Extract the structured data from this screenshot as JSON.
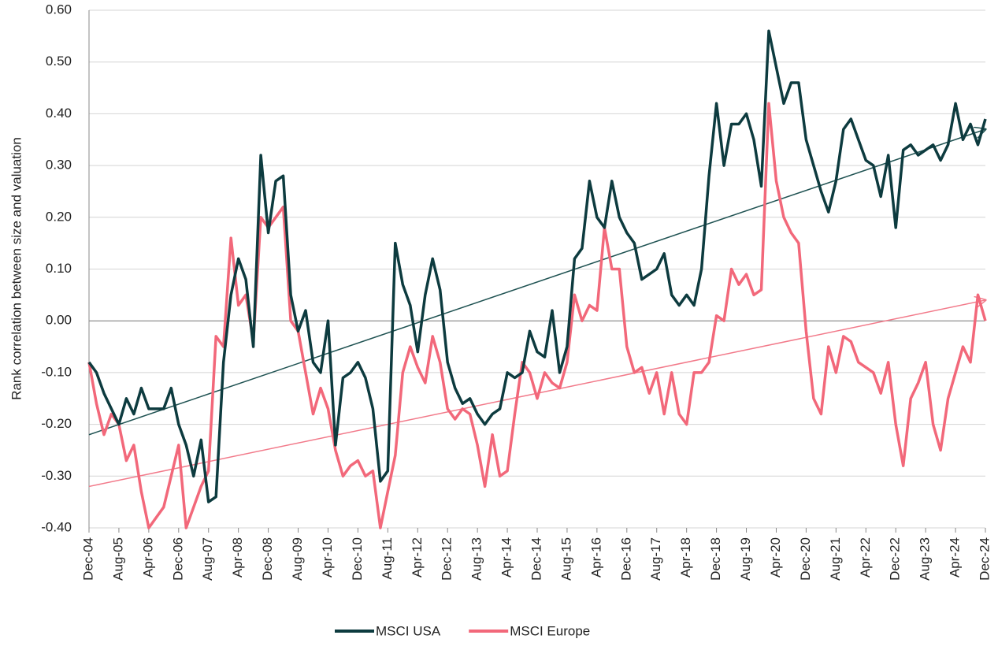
{
  "chart_data": {
    "type": "line",
    "y_label": "Rank correlation between size and valuation",
    "categories": [
      "Dec-04",
      null,
      null,
      null,
      "Aug-05",
      null,
      null,
      null,
      "Apr-06",
      null,
      null,
      null,
      "Dec-06",
      null,
      null,
      null,
      "Aug-07",
      null,
      null,
      null,
      "Apr-08",
      null,
      null,
      null,
      "Dec-08",
      null,
      null,
      null,
      "Aug-09",
      null,
      null,
      null,
      "Apr-10",
      null,
      null,
      null,
      "Dec-10",
      null,
      null,
      null,
      "Aug-11",
      null,
      null,
      null,
      "Apr-12",
      null,
      null,
      null,
      "Dec-12",
      null,
      null,
      null,
      "Aug-13",
      null,
      null,
      null,
      "Apr-14",
      null,
      null,
      null,
      "Dec-14",
      null,
      null,
      null,
      "Aug-15",
      null,
      null,
      null,
      "Apr-16",
      null,
      null,
      null,
      "Dec-16",
      null,
      null,
      null,
      "Aug-17",
      null,
      null,
      null,
      "Apr-18",
      null,
      null,
      null,
      "Dec-18",
      null,
      null,
      null,
      "Aug-19",
      null,
      null,
      null,
      "Apr-20",
      null,
      null,
      null,
      "Dec-20",
      null,
      null,
      null,
      "Aug-21",
      null,
      null,
      null,
      "Apr-22",
      null,
      null,
      null,
      "Dec-22",
      null,
      null,
      null,
      "Aug-23",
      null,
      null,
      null,
      "Apr-24",
      null,
      null,
      null,
      "Dec-24"
    ],
    "series": [
      {
        "name": "MSCI USA",
        "color": "#0d3b3f",
        "values": [
          -0.08,
          -0.1,
          -0.14,
          -0.17,
          -0.2,
          -0.15,
          -0.18,
          -0.13,
          -0.17,
          -0.17,
          -0.17,
          -0.13,
          -0.2,
          -0.24,
          -0.3,
          -0.23,
          -0.35,
          -0.34,
          -0.08,
          0.05,
          0.12,
          0.08,
          -0.05,
          0.32,
          0.17,
          0.27,
          0.28,
          0.05,
          -0.02,
          0.02,
          -0.08,
          -0.1,
          0.0,
          -0.24,
          -0.11,
          -0.1,
          -0.08,
          -0.11,
          -0.17,
          -0.31,
          -0.29,
          0.15,
          0.07,
          0.03,
          -0.06,
          0.05,
          0.12,
          0.06,
          -0.08,
          -0.13,
          -0.16,
          -0.15,
          -0.18,
          -0.2,
          -0.18,
          -0.17,
          -0.1,
          -0.11,
          -0.1,
          -0.02,
          -0.06,
          -0.07,
          0.02,
          -0.1,
          -0.05,
          0.12,
          0.14,
          0.27,
          0.2,
          0.18,
          0.27,
          0.2,
          0.17,
          0.15,
          0.08,
          0.09,
          0.1,
          0.13,
          0.05,
          0.03,
          0.05,
          0.03,
          0.1,
          0.28,
          0.42,
          0.3,
          0.38,
          0.38,
          0.4,
          0.35,
          0.26,
          0.56,
          0.49,
          0.42,
          0.46,
          0.46,
          0.35,
          0.3,
          0.25,
          0.21,
          0.27,
          0.37,
          0.39,
          0.35,
          0.31,
          0.3,
          0.24,
          0.32,
          0.18,
          0.33,
          0.34,
          0.32,
          0.33,
          0.34,
          0.31,
          0.34,
          0.42,
          0.35,
          0.38,
          0.34,
          0.39
        ]
      },
      {
        "name": "MSCI Europe",
        "color": "#f2687a",
        "values": [
          -0.08,
          -0.16,
          -0.22,
          -0.18,
          -0.2,
          -0.27,
          -0.24,
          -0.33,
          -0.4,
          -0.38,
          -0.36,
          -0.3,
          -0.24,
          -0.4,
          -0.36,
          -0.32,
          -0.29,
          -0.03,
          -0.05,
          0.16,
          0.03,
          0.05,
          -0.04,
          0.2,
          0.18,
          0.2,
          0.22,
          0.0,
          -0.02,
          -0.1,
          -0.18,
          -0.13,
          -0.17,
          -0.25,
          -0.3,
          -0.28,
          -0.27,
          -0.3,
          -0.29,
          -0.4,
          -0.33,
          -0.26,
          -0.1,
          -0.05,
          -0.09,
          -0.12,
          -0.03,
          -0.08,
          -0.17,
          -0.19,
          -0.17,
          -0.18,
          -0.24,
          -0.32,
          -0.22,
          -0.3,
          -0.29,
          -0.18,
          -0.08,
          -0.1,
          -0.15,
          -0.1,
          -0.12,
          -0.13,
          -0.08,
          0.05,
          0.0,
          0.03,
          0.02,
          0.18,
          0.1,
          0.1,
          -0.05,
          -0.1,
          -0.09,
          -0.14,
          -0.1,
          -0.18,
          -0.1,
          -0.18,
          -0.2,
          -0.1,
          -0.1,
          -0.08,
          0.01,
          0.0,
          0.1,
          0.07,
          0.09,
          0.05,
          0.06,
          0.42,
          0.27,
          0.2,
          0.17,
          0.15,
          -0.02,
          -0.15,
          -0.18,
          -0.05,
          -0.1,
          -0.03,
          -0.04,
          -0.08,
          -0.09,
          -0.1,
          -0.14,
          -0.08,
          -0.2,
          -0.28,
          -0.15,
          -0.12,
          -0.08,
          -0.2,
          -0.25,
          -0.15,
          -0.1,
          -0.05,
          -0.08,
          0.05,
          0.0
        ]
      }
    ],
    "trendlines": [
      {
        "color": "#1f5252",
        "values": [
          -0.22,
          0.37
        ]
      },
      {
        "color": "#f27a8a",
        "values": [
          -0.32,
          0.04
        ]
      }
    ],
    "ylim": [
      -0.4,
      0.6
    ],
    "yticks": [
      {
        "value": -0.4,
        "label": "-0.40"
      },
      {
        "value": -0.3,
        "label": "-0.30"
      },
      {
        "value": -0.2,
        "label": "-0.20"
      },
      {
        "value": -0.1,
        "label": "-0.10"
      },
      {
        "value": 0,
        "label": "0.00"
      },
      {
        "value": 0.1,
        "label": "0.10"
      },
      {
        "value": 0.2,
        "label": "0.20"
      },
      {
        "value": 0.3,
        "label": "0.30"
      },
      {
        "value": 0.4,
        "label": "0.40"
      },
      {
        "value": 0.5,
        "label": "0.50"
      },
      {
        "value": 0.6,
        "label": "0.60"
      }
    ],
    "grid": true,
    "legend": "bottom"
  }
}
